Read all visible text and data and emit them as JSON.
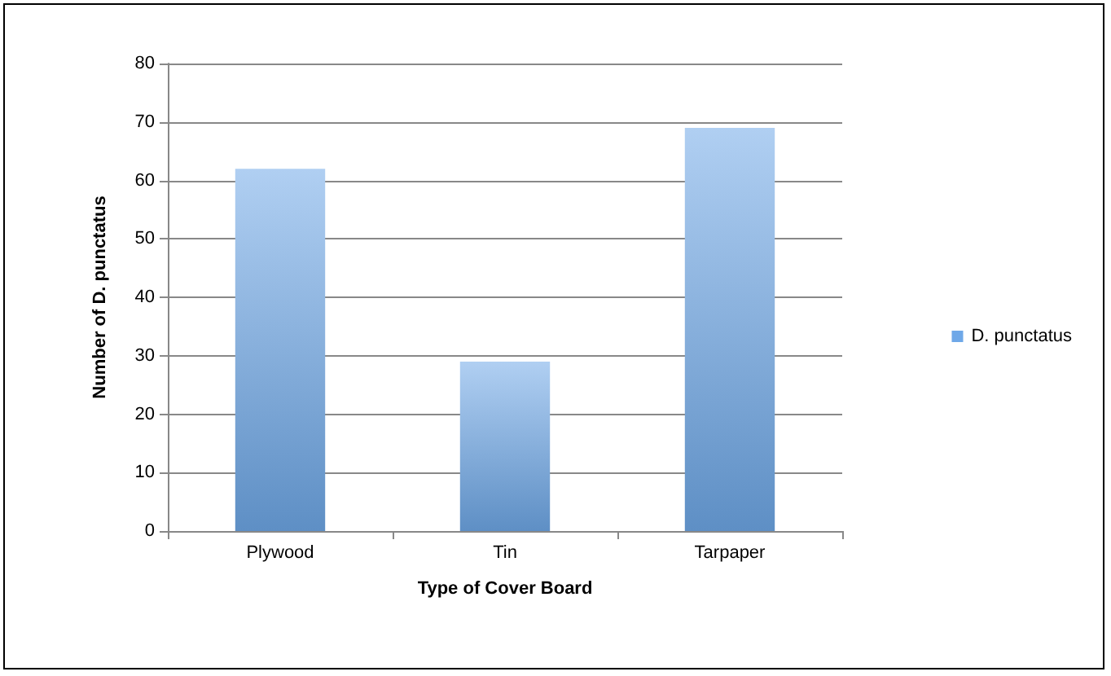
{
  "chart_data": {
    "type": "bar",
    "xlabel": "Type of Cover Board",
    "ylabel": "Number of D. punctatus",
    "categories": [
      "Plywood",
      "Tin",
      "Tarpaper"
    ],
    "series": [
      {
        "name": "D. punctatus",
        "color": "#6fa8e8",
        "values": [
          62,
          29,
          69
        ]
      }
    ],
    "ylim": [
      0,
      80
    ],
    "yticks": [
      0,
      10,
      20,
      30,
      40,
      50,
      60,
      70,
      80
    ],
    "grid": "y",
    "legend": "right"
  }
}
